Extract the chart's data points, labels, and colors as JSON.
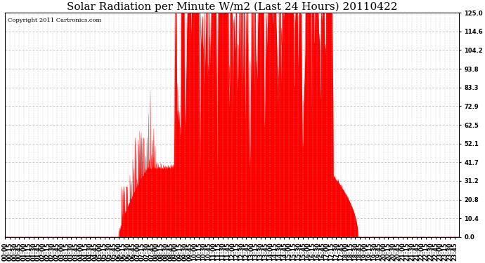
{
  "title": "Solar Radiation per Minute W/m2 (Last 24 Hours) 20110422",
  "copyright_text": "Copyright 2011 Cartronics.com",
  "y_ticks": [
    0.0,
    10.4,
    20.8,
    31.2,
    41.7,
    52.1,
    62.5,
    72.9,
    83.3,
    93.8,
    104.2,
    114.6,
    125.0
  ],
  "y_max": 125.0,
  "y_min": 0.0,
  "bar_color": "#ff0000",
  "dashed_line_color": "#b0b0b0",
  "baseline_dashed_color": "#ff0000",
  "background_color": "#ffffff",
  "grid_color": "#cccccc",
  "title_fontsize": 11,
  "copyright_fontsize": 6,
  "tick_fontsize": 6
}
